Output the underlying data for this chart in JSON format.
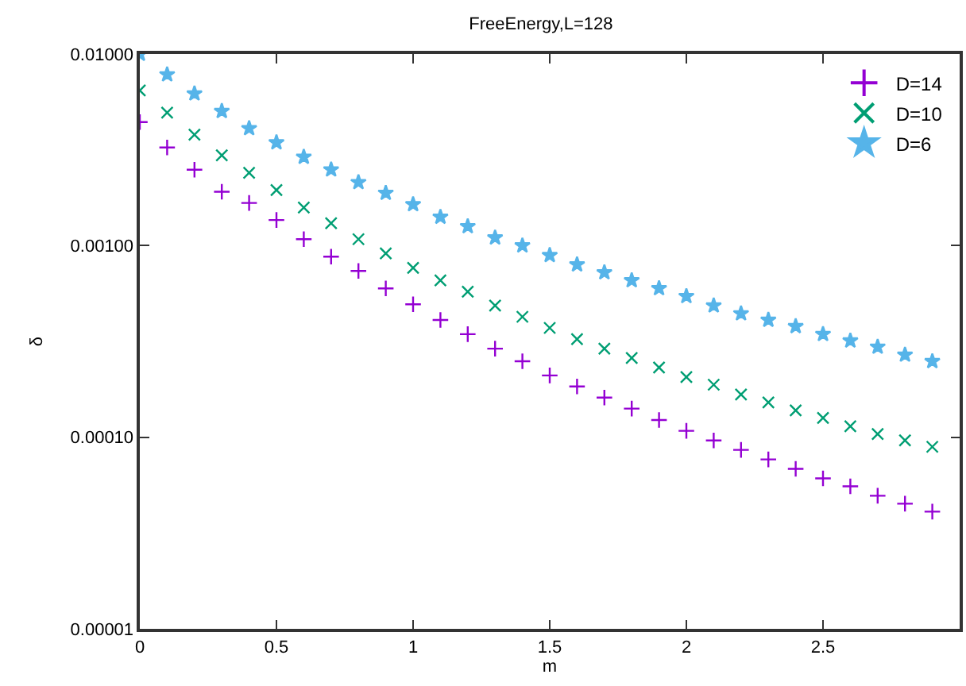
{
  "chart_data": {
    "type": "scatter",
    "title": "FreeEnergy,L=128",
    "xlabel": "m",
    "ylabel": "δ",
    "log": "y",
    "x": [
      0,
      0.1,
      0.2,
      0.3,
      0.4,
      0.5,
      0.6,
      0.7,
      0.8,
      0.9,
      1.0,
      1.1,
      1.2,
      1.3,
      1.4,
      1.5,
      1.6,
      1.7,
      1.8,
      1.9,
      2.0,
      2.1,
      2.2,
      2.3,
      2.4,
      2.5,
      2.6,
      2.7,
      2.8,
      2.9
    ],
    "series": [
      {
        "name": "D=14",
        "color": "#9400d3",
        "marker": "cross",
        "values": [
          0.00441,
          0.00325,
          0.00249,
          0.00191,
          0.00167,
          0.00136,
          0.00108,
          0.000875,
          0.000738,
          0.000598,
          0.000494,
          0.000409,
          0.000345,
          0.00029,
          0.000249,
          0.00021,
          0.000184,
          0.000161,
          0.000141,
          0.000123,
          0.000108,
          9.62e-05,
          8.59e-05,
          7.66e-05,
          6.84e-05,
          6.1e-05,
          5.54e-05,
          4.95e-05,
          4.5e-05,
          4.09e-05
        ]
      },
      {
        "name": "D=10",
        "color": "#009e73",
        "marker": "x",
        "values": [
          0.00645,
          0.00494,
          0.00379,
          0.00296,
          0.0024,
          0.00195,
          0.00158,
          0.00131,
          0.00108,
          0.00091,
          0.000766,
          0.000658,
          0.000575,
          0.000486,
          0.000425,
          0.000372,
          0.000325,
          0.00029,
          0.000259,
          0.000231,
          0.000206,
          0.000188,
          0.000167,
          0.000152,
          0.000138,
          0.000126,
          0.000114,
          0.000104,
          9.62e-05,
          8.91e-05
        ]
      },
      {
        "name": "D=6",
        "color": "#56b4e9",
        "marker": "star",
        "values": [
          0.01,
          0.00781,
          0.00621,
          0.00503,
          0.00409,
          0.00345,
          0.0029,
          0.00249,
          0.00214,
          0.00188,
          0.00164,
          0.00141,
          0.00126,
          0.0011,
          0.001,
          0.00089,
          0.000796,
          0.000724,
          0.000658,
          0.000598,
          0.000544,
          0.000486,
          0.000442,
          0.000409,
          0.000379,
          0.000345,
          0.000319,
          0.000296,
          0.000269,
          0.000249
        ]
      }
    ],
    "xlim": [
      0,
      3
    ],
    "xticks": [
      0,
      0.5,
      1,
      1.5,
      2,
      2.5
    ],
    "ylim": [
      1e-05,
      0.01
    ],
    "yticks": [
      {
        "value": 0.01,
        "label": "0.01000"
      },
      {
        "value": 0.001,
        "label": "0.00100"
      },
      {
        "value": 0.0001,
        "label": "0.00010"
      },
      {
        "value": 1e-05,
        "label": "0.00001"
      }
    ],
    "legend": "top right"
  }
}
